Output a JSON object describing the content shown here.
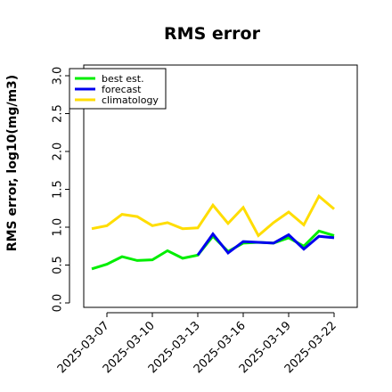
{
  "chart_data": {
    "type": "line",
    "title": "RMS error",
    "xlabel": "",
    "ylabel": "RMS error, log10(mg/m3)",
    "ylim": [
      0.0,
      3.0
    ],
    "yticks": [
      "0.0",
      "0.5",
      "1.0",
      "1.5",
      "2.0",
      "2.5",
      "3.0"
    ],
    "x": [
      "2025-03-06",
      "2025-03-07",
      "2025-03-08",
      "2025-03-09",
      "2025-03-10",
      "2025-03-11",
      "2025-03-12",
      "2025-03-13",
      "2025-03-14",
      "2025-03-15",
      "2025-03-16",
      "2025-03-17",
      "2025-03-18",
      "2025-03-19",
      "2025-03-20",
      "2025-03-21",
      "2025-03-22"
    ],
    "xticks": [
      {
        "label": "2025-03-07",
        "color": "#000000"
      },
      {
        "label": "2025-03-10",
        "color": "#000000"
      },
      {
        "label": "2025-03-13",
        "color": "#228B22"
      },
      {
        "label": "2025-03-16",
        "color": "#000000"
      },
      {
        "label": "2025-03-19",
        "color": "#000000"
      },
      {
        "label": "2025-03-22",
        "color": "#000000"
      }
    ],
    "legend_position": "top-left",
    "grid": false,
    "series": [
      {
        "name": "best est.",
        "color": "#00ee00",
        "values": [
          0.45,
          0.51,
          0.61,
          0.56,
          0.57,
          0.69,
          0.59,
          0.63,
          0.88,
          0.68,
          0.79,
          0.8,
          0.79,
          0.86,
          0.75,
          0.95,
          0.89
        ]
      },
      {
        "name": "forecast",
        "color": "#0000ee",
        "values": [
          null,
          null,
          null,
          null,
          null,
          null,
          null,
          0.63,
          0.91,
          0.66,
          0.81,
          0.8,
          0.79,
          0.9,
          0.71,
          0.88,
          0.86
        ]
      },
      {
        "name": "climatology",
        "color": "#ffdd00",
        "values": [
          0.98,
          1.02,
          1.17,
          1.14,
          1.02,
          1.06,
          0.98,
          0.99,
          1.29,
          1.05,
          1.26,
          0.89,
          1.06,
          1.2,
          1.03,
          1.41,
          1.24
        ]
      }
    ]
  }
}
